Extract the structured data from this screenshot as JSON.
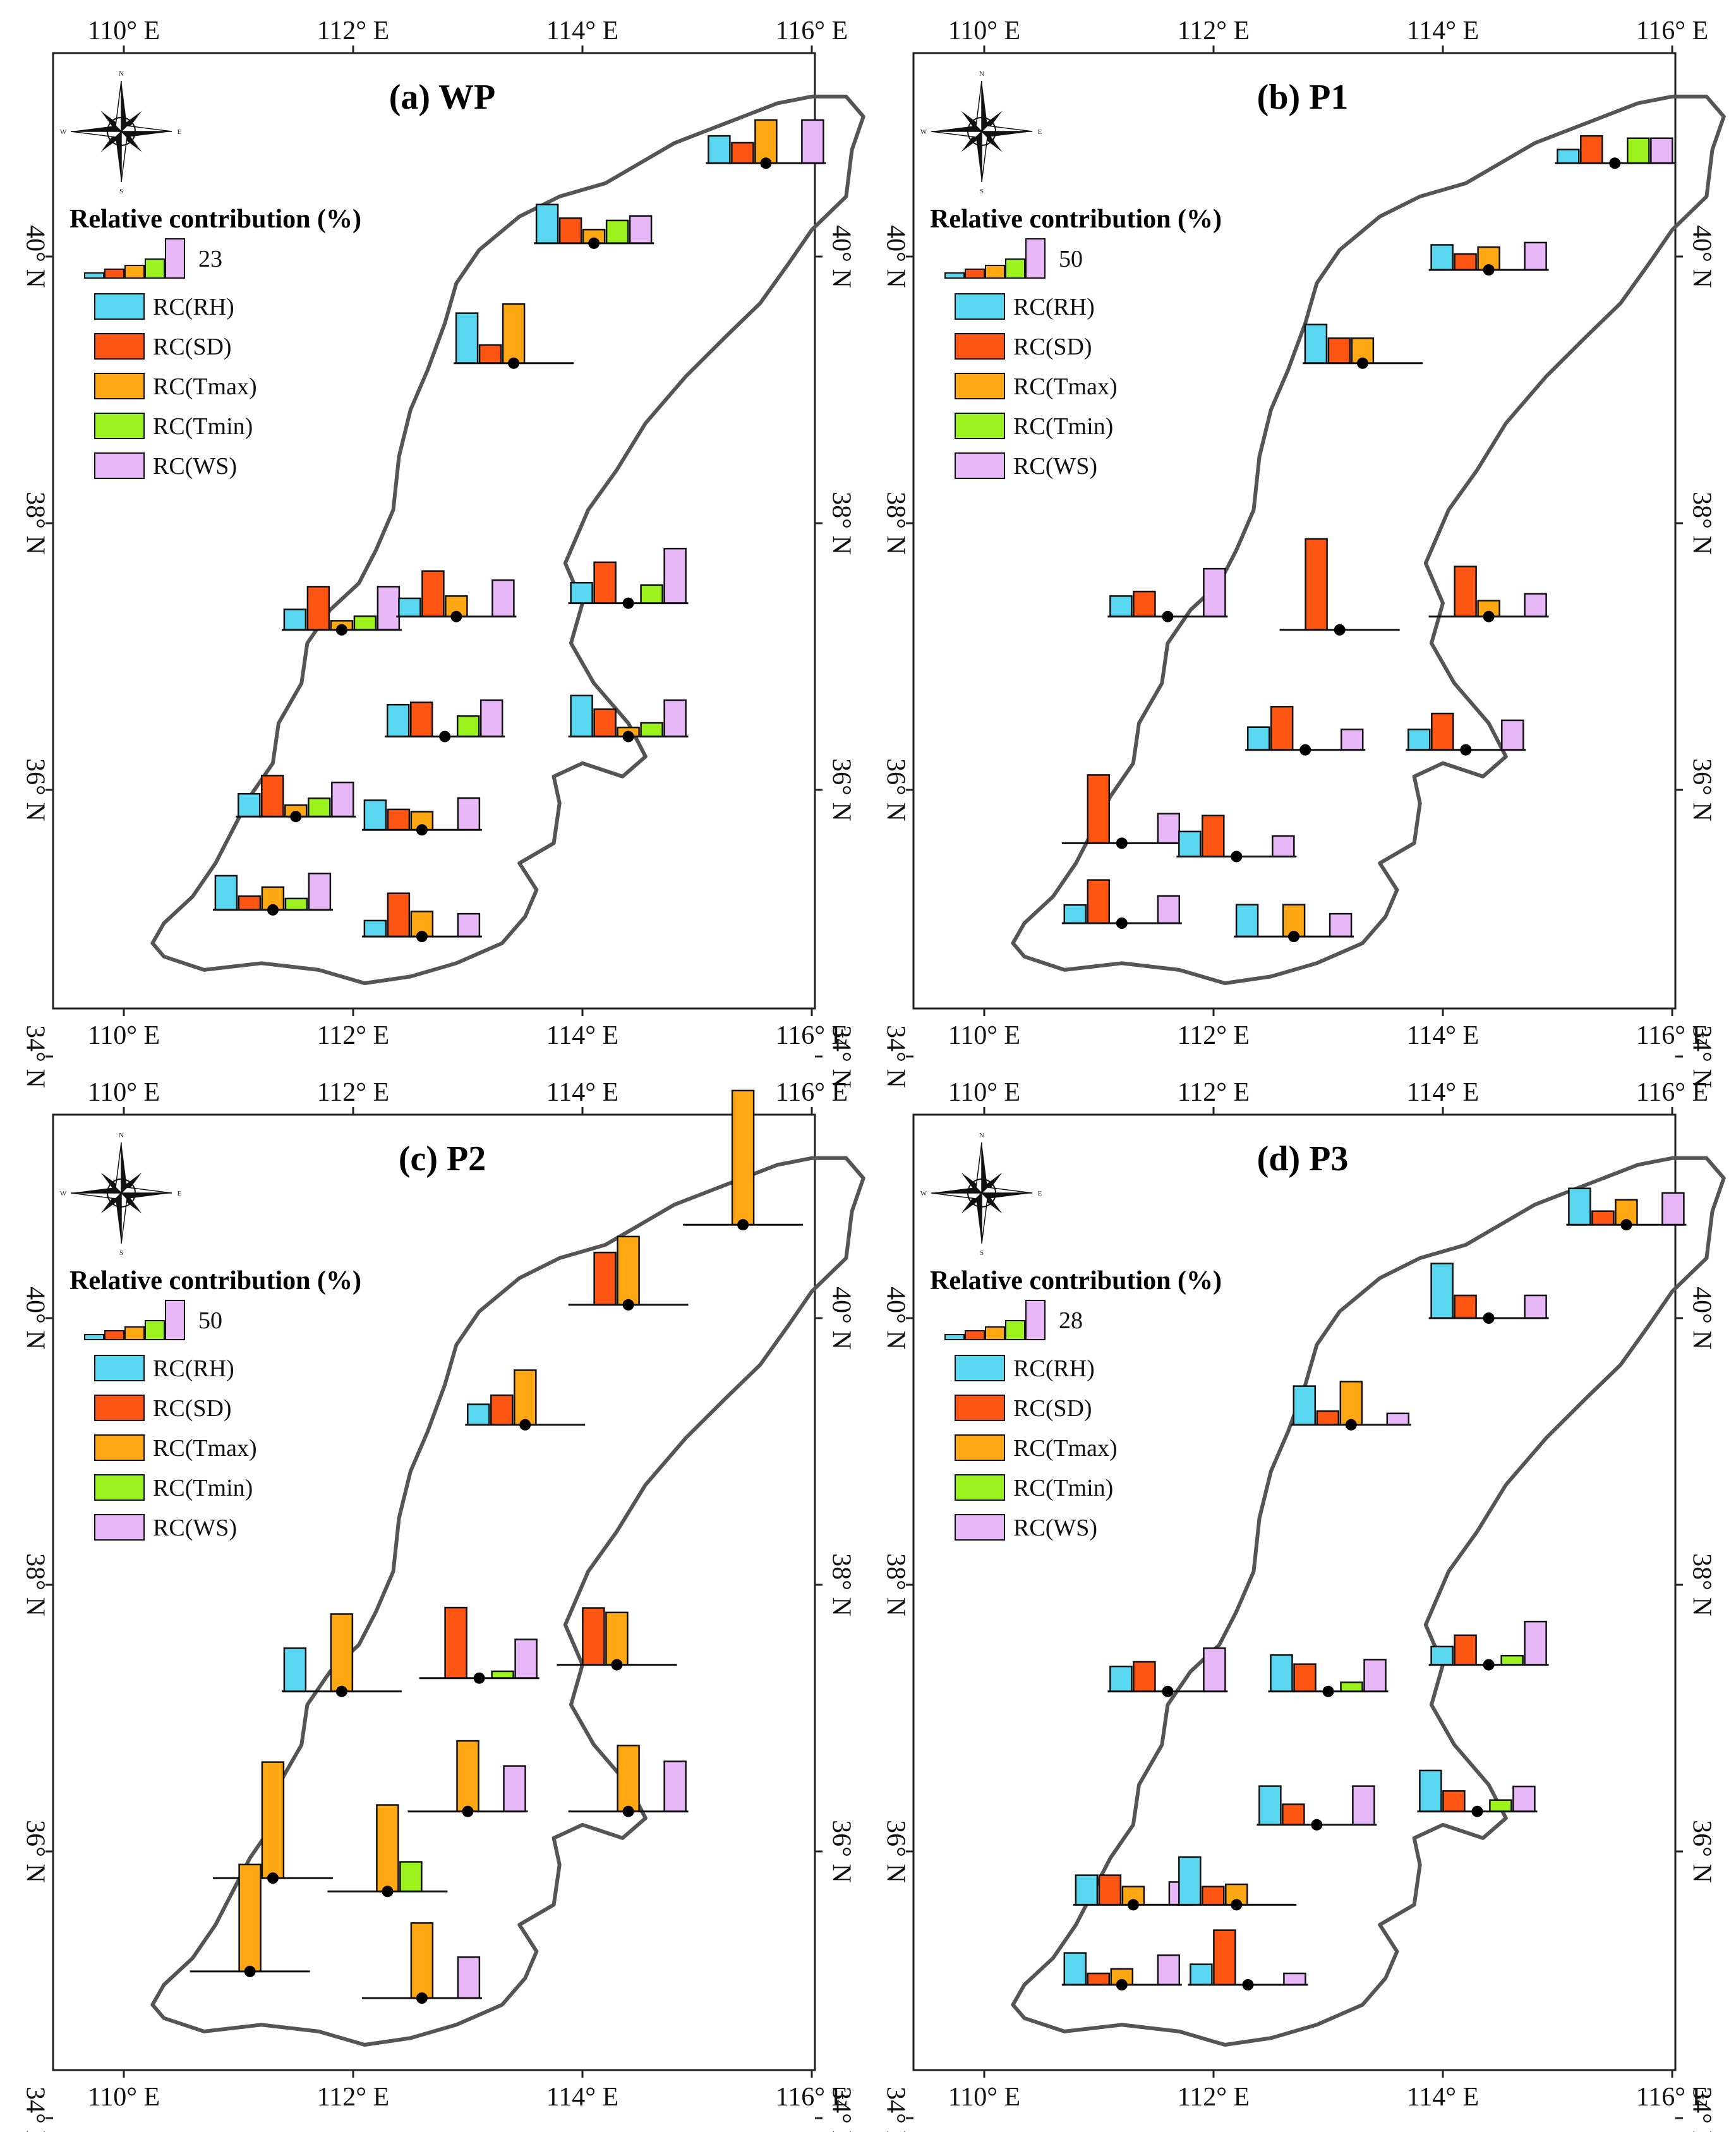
{
  "colors": {
    "RH": "#5ad7f0",
    "SD": "#ff5512",
    "Tmax": "#ffa813",
    "Tmin": "#9bf21c",
    "WS": "#e7b7f7",
    "boundary": "#555555",
    "frame": "#222222"
  },
  "axis_labels": {
    "lon": [
      "110° E",
      "112° E",
      "114° E",
      "116° E"
    ],
    "lat": [
      "34° N",
      "36° N",
      "38° N",
      "40° N"
    ]
  },
  "legend": {
    "title": "Relative contribution (%)",
    "items": [
      {
        "key": "RH",
        "label": "RC(RH)"
      },
      {
        "key": "SD",
        "label": "RC(SD)"
      },
      {
        "key": "Tmax",
        "label": "RC(Tmax)"
      },
      {
        "key": "Tmin",
        "label": "RC(Tmin)"
      },
      {
        "key": "WS",
        "label": "RC(WS)"
      }
    ]
  },
  "compass": {
    "n": "N",
    "s": "S",
    "e": "E",
    "w": "W",
    "icon": "north-arrow-compass-icon"
  },
  "panels": [
    {
      "id": "a",
      "title": "(a) WP",
      "scale_max": 23,
      "stations": [
        {
          "lon": 115.6,
          "lat": 40.7,
          "v": [
            12,
            9,
            19,
            0,
            19
          ]
        },
        {
          "lon": 114.1,
          "lat": 40.1,
          "v": [
            17,
            11,
            6,
            10,
            12
          ]
        },
        {
          "lon": 113.4,
          "lat": 39.2,
          "v": [
            22,
            8,
            26,
            0,
            0
          ]
        },
        {
          "lon": 111.9,
          "lat": 37.2,
          "v": [
            9,
            19,
            4,
            6,
            19
          ]
        },
        {
          "lon": 112.9,
          "lat": 37.3,
          "v": [
            8,
            20,
            9,
            0,
            16
          ]
        },
        {
          "lon": 114.4,
          "lat": 37.4,
          "v": [
            9,
            18,
            0,
            8,
            24
          ]
        },
        {
          "lon": 112.8,
          "lat": 36.4,
          "v": [
            14,
            15,
            0,
            9,
            16
          ]
        },
        {
          "lon": 114.4,
          "lat": 36.4,
          "v": [
            18,
            12,
            4,
            6,
            16
          ]
        },
        {
          "lon": 111.5,
          "lat": 35.8,
          "v": [
            10,
            18,
            5,
            8,
            15
          ]
        },
        {
          "lon": 112.6,
          "lat": 35.7,
          "v": [
            13,
            9,
            8,
            0,
            14
          ]
        },
        {
          "lon": 111.3,
          "lat": 35.1,
          "v": [
            15,
            6,
            10,
            5,
            16
          ]
        },
        {
          "lon": 112.6,
          "lat": 34.9,
          "v": [
            7,
            19,
            11,
            0,
            10
          ]
        }
      ]
    },
    {
      "id": "b",
      "title": "(b) P1",
      "scale_max": 50,
      "stations": [
        {
          "lon": 115.5,
          "lat": 40.7,
          "v": [
            6,
            12,
            0,
            11,
            11
          ]
        },
        {
          "lon": 114.4,
          "lat": 39.9,
          "v": [
            11,
            7,
            10,
            0,
            12
          ]
        },
        {
          "lon": 113.3,
          "lat": 39.2,
          "v": [
            17,
            11,
            11,
            0,
            0
          ]
        },
        {
          "lon": 111.6,
          "lat": 37.3,
          "v": [
            9,
            11,
            0,
            0,
            21
          ]
        },
        {
          "lon": 113.1,
          "lat": 37.2,
          "v": [
            0,
            40,
            0,
            0,
            0
          ]
        },
        {
          "lon": 114.4,
          "lat": 37.3,
          "v": [
            0,
            22,
            7,
            0,
            10
          ]
        },
        {
          "lon": 112.8,
          "lat": 36.3,
          "v": [
            10,
            19,
            0,
            0,
            9
          ]
        },
        {
          "lon": 114.2,
          "lat": 36.3,
          "v": [
            9,
            16,
            0,
            0,
            13
          ]
        },
        {
          "lon": 111.2,
          "lat": 35.6,
          "v": [
            0,
            30,
            0,
            0,
            13
          ]
        },
        {
          "lon": 112.2,
          "lat": 35.5,
          "v": [
            11,
            18,
            0,
            0,
            9
          ]
        },
        {
          "lon": 111.2,
          "lat": 35.0,
          "v": [
            8,
            19,
            0,
            0,
            12
          ]
        },
        {
          "lon": 112.7,
          "lat": 34.9,
          "v": [
            14,
            0,
            14,
            0,
            10
          ]
        }
      ]
    },
    {
      "id": "c",
      "title": "(c) P2",
      "scale_max": 50,
      "stations": [
        {
          "lon": 115.4,
          "lat": 40.7,
          "v": [
            0,
            0,
            59,
            0,
            0
          ]
        },
        {
          "lon": 114.4,
          "lat": 40.1,
          "v": [
            0,
            23,
            30,
            0,
            0
          ]
        },
        {
          "lon": 113.5,
          "lat": 39.2,
          "v": [
            9,
            13,
            24,
            0,
            0
          ]
        },
        {
          "lon": 111.9,
          "lat": 37.2,
          "v": [
            19,
            0,
            34,
            0,
            0
          ]
        },
        {
          "lon": 113.1,
          "lat": 37.3,
          "v": [
            0,
            31,
            0,
            3,
            17
          ]
        },
        {
          "lon": 114.3,
          "lat": 37.4,
          "v": [
            0,
            25,
            23,
            0,
            0
          ]
        },
        {
          "lon": 113.0,
          "lat": 36.3,
          "v": [
            0,
            0,
            31,
            0,
            20
          ]
        },
        {
          "lon": 114.4,
          "lat": 36.3,
          "v": [
            0,
            0,
            29,
            0,
            22
          ]
        },
        {
          "lon": 111.3,
          "lat": 35.8,
          "v": [
            0,
            0,
            51,
            0,
            0
          ]
        },
        {
          "lon": 112.3,
          "lat": 35.7,
          "v": [
            0,
            0,
            38,
            13,
            0
          ]
        },
        {
          "lon": 111.1,
          "lat": 35.1,
          "v": [
            0,
            0,
            47,
            0,
            0
          ]
        },
        {
          "lon": 112.6,
          "lat": 34.9,
          "v": [
            0,
            0,
            33,
            0,
            18
          ]
        }
      ]
    },
    {
      "id": "d",
      "title": "(d) P3",
      "scale_max": 28,
      "stations": [
        {
          "lon": 115.6,
          "lat": 40.7,
          "v": [
            16,
            6,
            11,
            0,
            14
          ]
        },
        {
          "lon": 114.4,
          "lat": 40.0,
          "v": [
            24,
            10,
            0,
            0,
            10
          ]
        },
        {
          "lon": 113.2,
          "lat": 39.2,
          "v": [
            17,
            6,
            19,
            0,
            5
          ]
        },
        {
          "lon": 111.6,
          "lat": 37.2,
          "v": [
            11,
            13,
            0,
            0,
            19
          ]
        },
        {
          "lon": 113.0,
          "lat": 37.2,
          "v": [
            16,
            12,
            0,
            4,
            14
          ]
        },
        {
          "lon": 114.4,
          "lat": 37.4,
          "v": [
            8,
            13,
            0,
            4,
            19
          ]
        },
        {
          "lon": 112.9,
          "lat": 36.2,
          "v": [
            17,
            9,
            0,
            0,
            17
          ]
        },
        {
          "lon": 114.3,
          "lat": 36.3,
          "v": [
            18,
            9,
            0,
            5,
            11
          ]
        },
        {
          "lon": 111.3,
          "lat": 35.6,
          "v": [
            13,
            13,
            8,
            0,
            10
          ]
        },
        {
          "lon": 112.2,
          "lat": 35.6,
          "v": [
            21,
            8,
            9,
            0,
            0
          ]
        },
        {
          "lon": 111.2,
          "lat": 35.0,
          "v": [
            14,
            5,
            7,
            0,
            13
          ]
        },
        {
          "lon": 112.3,
          "lat": 35.0,
          "v": [
            9,
            24,
            0,
            0,
            5
          ]
        }
      ]
    }
  ]
}
